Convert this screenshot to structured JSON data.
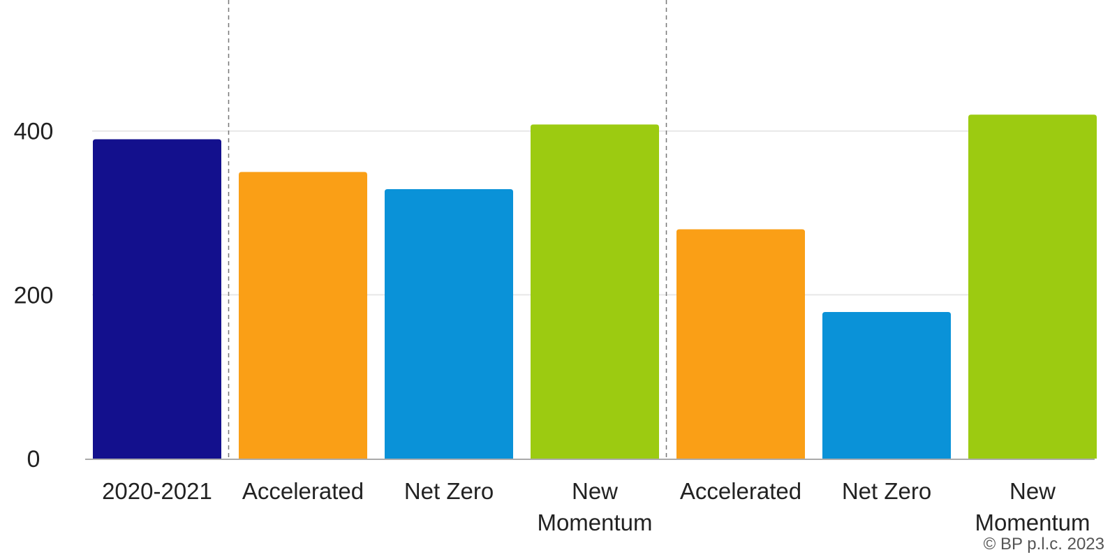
{
  "chart_data": {
    "type": "bar",
    "categories": [
      [
        "2020-2021"
      ],
      [
        "Accelerated"
      ],
      [
        "Net Zero"
      ],
      [
        "New",
        "Momentum"
      ],
      [
        "Accelerated"
      ],
      [
        "Net Zero"
      ],
      [
        "New",
        "Momentum"
      ]
    ],
    "values": [
      390,
      350,
      329,
      408,
      280,
      179,
      420
    ],
    "bar_colors": [
      "#13108d",
      "#fa9f16",
      "#0a92d8",
      "#9ccb11",
      "#fa9f16",
      "#0a92d8",
      "#9ccb11"
    ],
    "group_separators_after": [
      0,
      3
    ],
    "title": "",
    "xlabel": "",
    "ylabel": "",
    "ylim": [
      0,
      560
    ],
    "yticks": [
      0,
      200,
      400
    ],
    "grid": true,
    "legend": "none"
  },
  "footer": {
    "copyright": "© BP p.l.c. 2023"
  },
  "colors": {
    "gridline": "#e8e8e8",
    "axis": "#aaaaaa",
    "separator": "#777777"
  }
}
